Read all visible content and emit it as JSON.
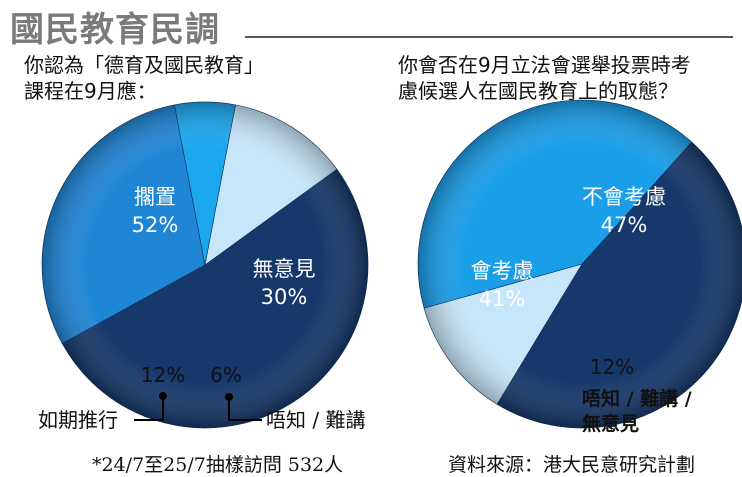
{
  "header": {
    "title": "國民教育民調"
  },
  "chart_data": [
    {
      "type": "pie",
      "question": [
        "你認為「德育及國民教育」",
        "課程在9月應："
      ],
      "slices": [
        {
          "label": "擱置",
          "value": 52,
          "value_label": "52%",
          "color": "#17386b"
        },
        {
          "label": "無意見",
          "value": 30,
          "value_label": "30%",
          "color": "#1f86d6"
        },
        {
          "label": "唔知 / 難講",
          "value": 6,
          "value_label": "6%",
          "color": "#1aa7ee"
        },
        {
          "label": "如期推行",
          "value": 12,
          "value_label": "12%",
          "color": "#c7e6fa"
        }
      ]
    },
    {
      "type": "pie",
      "question": [
        "你會否在9月立法會選舉投票時考",
        "慮候選人在國民教育上的取態？"
      ],
      "slices": [
        {
          "label": "不會考慮",
          "value": 47,
          "value_label": "47%",
          "color": "#17386b"
        },
        {
          "label": "唔知 / 難講 /",
          "label2": "無意見",
          "value": 12,
          "value_label": "12%",
          "color": "#c7e6fa"
        },
        {
          "label": "會考慮",
          "value": 41,
          "value_label": "41%",
          "color": "#1a9ee8"
        }
      ]
    }
  ],
  "footnote": "*24/7至25/7抽樣訪問 532人",
  "source": "資料來源：港大民意研究計劃"
}
